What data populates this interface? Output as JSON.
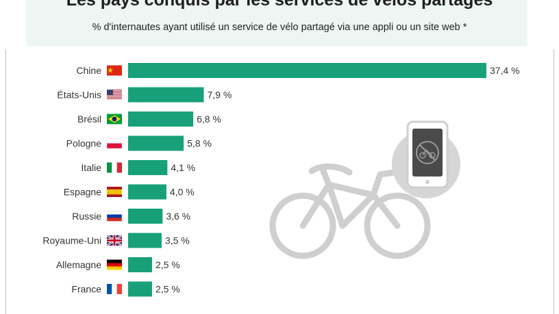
{
  "chart_data": {
    "type": "bar",
    "orientation": "horizontal",
    "title": "Les pays conquis par les services de vélos partagés",
    "subtitle": "% d'internautes ayant utilisé un service de vélo partagé via une appli ou un site web *",
    "categories": [
      "Chine",
      "États-Unis",
      "Brésil",
      "Pologne",
      "Italie",
      "Espagne",
      "Russie",
      "Royaume-Uni",
      "Allemagne",
      "France"
    ],
    "values": [
      37.4,
      7.9,
      6.8,
      5.8,
      4.1,
      4.0,
      3.6,
      3.5,
      2.5,
      2.5
    ],
    "value_labels": [
      "37,4 %",
      "7,9 %",
      "6,8 %",
      "5,8 %",
      "4,1 %",
      "4,0 %",
      "3,6 %",
      "3,5 %",
      "2,5 %",
      "2,5 %"
    ],
    "flag_icons": [
      "flag-china-icon",
      "flag-usa-icon",
      "flag-brazil-icon",
      "flag-poland-icon",
      "flag-italy-icon",
      "flag-spain-icon",
      "flag-russia-icon",
      "flag-uk-icon",
      "flag-germany-icon",
      "flag-france-icon"
    ],
    "bar_color": "#17a07a",
    "xlim": [
      0,
      37.4
    ],
    "grid": false
  },
  "colors": {
    "header_bg": "#eef6f4",
    "illustration": "#cfcfcf"
  }
}
